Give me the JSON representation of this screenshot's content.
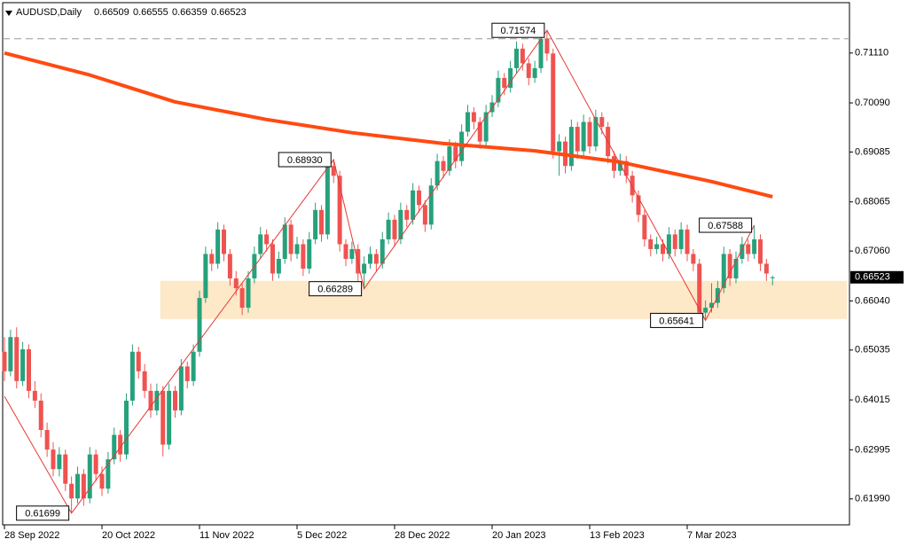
{
  "chart_data": {
    "type": "candlestick",
    "symbol": "AUDUSD,Daily",
    "ylim": [
      0.6146,
      0.7214
    ],
    "yticks": [
      {
        "value": 0.7111,
        "label": "0.71110"
      },
      {
        "value": 0.7009,
        "label": "0.70090"
      },
      {
        "value": 0.69085,
        "label": "0.69085"
      },
      {
        "value": 0.68065,
        "label": "0.68065"
      },
      {
        "value": 0.6706,
        "label": "0.67060"
      },
      {
        "value": 0.6604,
        "label": "0.66040"
      },
      {
        "value": 0.65035,
        "label": "0.65035"
      },
      {
        "value": 0.64015,
        "label": "0.64015"
      },
      {
        "value": 0.62995,
        "label": "0.62995"
      },
      {
        "value": 0.6199,
        "label": "0.61990"
      }
    ],
    "xticks": [
      {
        "value": 0,
        "label": "28 Sep 2022"
      },
      {
        "value": 16,
        "label": "20 Oct 2022"
      },
      {
        "value": 32,
        "label": "11 Nov 2022"
      },
      {
        "value": 48,
        "label": "5 Dec 2022"
      },
      {
        "value": 64,
        "label": "28 Dec 2022"
      },
      {
        "value": 80,
        "label": "20 Jan 2023"
      },
      {
        "value": 96,
        "label": "13 Feb 2023"
      },
      {
        "value": 112,
        "label": "7 Mar 2023"
      }
    ],
    "up_color": "#26a17b",
    "down_color": "#ef5350",
    "candles": [
      [
        0.65,
        0.653,
        0.644,
        0.646
      ],
      [
        0.646,
        0.6545,
        0.645,
        0.653
      ],
      [
        0.653,
        0.655,
        0.6425,
        0.644
      ],
      [
        0.644,
        0.652,
        0.643,
        0.6505
      ],
      [
        0.6505,
        0.6515,
        0.6405,
        0.642
      ],
      [
        0.642,
        0.644,
        0.6385,
        0.64
      ],
      [
        0.64,
        0.6415,
        0.6325,
        0.634
      ],
      [
        0.634,
        0.6355,
        0.6285,
        0.63
      ],
      [
        0.63,
        0.6315,
        0.6245,
        0.626
      ],
      [
        0.626,
        0.6305,
        0.6245,
        0.629
      ],
      [
        0.629,
        0.63,
        0.6215,
        0.623
      ],
      [
        0.623,
        0.6245,
        0.617,
        0.62
      ],
      [
        0.62,
        0.6265,
        0.619,
        0.625
      ],
      [
        0.625,
        0.626,
        0.6185,
        0.62
      ],
      [
        0.62,
        0.6305,
        0.619,
        0.629
      ],
      [
        0.629,
        0.63,
        0.6235,
        0.625
      ],
      [
        0.625,
        0.6265,
        0.6205,
        0.622
      ],
      [
        0.622,
        0.6295,
        0.621,
        0.628
      ],
      [
        0.628,
        0.6345,
        0.627,
        0.633
      ],
      [
        0.633,
        0.634,
        0.6275,
        0.629
      ],
      [
        0.629,
        0.6415,
        0.628,
        0.64
      ],
      [
        0.64,
        0.6515,
        0.639,
        0.65
      ],
      [
        0.65,
        0.651,
        0.6445,
        0.646
      ],
      [
        0.646,
        0.6475,
        0.6405,
        0.642
      ],
      [
        0.642,
        0.6435,
        0.6365,
        0.638
      ],
      [
        0.638,
        0.6435,
        0.637,
        0.642
      ],
      [
        0.642,
        0.643,
        0.6286,
        0.631
      ],
      [
        0.631,
        0.6435,
        0.63,
        0.642
      ],
      [
        0.642,
        0.643,
        0.6365,
        0.638
      ],
      [
        0.638,
        0.6485,
        0.637,
        0.647
      ],
      [
        0.647,
        0.648,
        0.6425,
        0.644
      ],
      [
        0.644,
        0.6515,
        0.643,
        0.65
      ],
      [
        0.65,
        0.6625,
        0.649,
        0.661
      ],
      [
        0.661,
        0.6715,
        0.66,
        0.67
      ],
      [
        0.67,
        0.671,
        0.6665,
        0.668
      ],
      [
        0.668,
        0.6765,
        0.667,
        0.675
      ],
      [
        0.675,
        0.676,
        0.6685,
        0.67
      ],
      [
        0.67,
        0.671,
        0.6635,
        0.665
      ],
      [
        0.665,
        0.6665,
        0.6615,
        0.663
      ],
      [
        0.663,
        0.664,
        0.6575,
        0.659
      ],
      [
        0.659,
        0.6665,
        0.658,
        0.665
      ],
      [
        0.665,
        0.6715,
        0.664,
        0.67
      ],
      [
        0.67,
        0.6755,
        0.669,
        0.674
      ],
      [
        0.674,
        0.675,
        0.6705,
        0.672
      ],
      [
        0.672,
        0.673,
        0.6645,
        0.666
      ],
      [
        0.666,
        0.6705,
        0.665,
        0.669
      ],
      [
        0.669,
        0.6775,
        0.668,
        0.676
      ],
      [
        0.676,
        0.677,
        0.6685,
        0.67
      ],
      [
        0.67,
        0.6735,
        0.669,
        0.672
      ],
      [
        0.672,
        0.673,
        0.6655,
        0.667
      ],
      [
        0.667,
        0.6745,
        0.666,
        0.673
      ],
      [
        0.673,
        0.6805,
        0.672,
        0.679
      ],
      [
        0.679,
        0.68,
        0.6725,
        0.674
      ],
      [
        0.674,
        0.6885,
        0.673,
        0.688
      ],
      [
        0.688,
        0.6893,
        0.6845,
        0.686
      ],
      [
        0.686,
        0.687,
        0.6705,
        0.672
      ],
      [
        0.672,
        0.673,
        0.6675,
        0.669
      ],
      [
        0.669,
        0.6725,
        0.668,
        0.671
      ],
      [
        0.671,
        0.672,
        0.6645,
        0.666
      ],
      [
        0.666,
        0.6695,
        0.66289,
        0.668
      ],
      [
        0.668,
        0.6715,
        0.667,
        0.67
      ],
      [
        0.67,
        0.671,
        0.6665,
        0.668
      ],
      [
        0.668,
        0.6745,
        0.667,
        0.673
      ],
      [
        0.673,
        0.6785,
        0.672,
        0.677
      ],
      [
        0.677,
        0.678,
        0.6715,
        0.673
      ],
      [
        0.673,
        0.6805,
        0.672,
        0.679
      ],
      [
        0.679,
        0.68,
        0.6755,
        0.677
      ],
      [
        0.677,
        0.6845,
        0.676,
        0.683
      ],
      [
        0.683,
        0.684,
        0.6785,
        0.68
      ],
      [
        0.68,
        0.681,
        0.6745,
        0.676
      ],
      [
        0.676,
        0.6855,
        0.675,
        0.684
      ],
      [
        0.684,
        0.6905,
        0.683,
        0.689
      ],
      [
        0.689,
        0.69,
        0.6855,
        0.687
      ],
      [
        0.687,
        0.6935,
        0.686,
        0.692
      ],
      [
        0.692,
        0.693,
        0.6875,
        0.689
      ],
      [
        0.689,
        0.6965,
        0.688,
        0.695
      ],
      [
        0.695,
        0.7005,
        0.694,
        0.699
      ],
      [
        0.699,
        0.7,
        0.6955,
        0.697
      ],
      [
        0.697,
        0.698,
        0.6915,
        0.693
      ],
      [
        0.693,
        0.7005,
        0.692,
        0.699
      ],
      [
        0.699,
        0.7025,
        0.698,
        0.701
      ],
      [
        0.701,
        0.7075,
        0.7,
        0.706
      ],
      [
        0.706,
        0.707,
        0.7025,
        0.704
      ],
      [
        0.704,
        0.7095,
        0.703,
        0.708
      ],
      [
        0.708,
        0.7135,
        0.707,
        0.712
      ],
      [
        0.712,
        0.713,
        0.7075,
        0.709
      ],
      [
        0.709,
        0.71,
        0.7045,
        0.706
      ],
      [
        0.706,
        0.7095,
        0.705,
        0.708
      ],
      [
        0.708,
        0.715,
        0.707,
        0.714
      ],
      [
        0.714,
        0.71574,
        0.7095,
        0.711
      ],
      [
        0.711,
        0.712,
        0.6895,
        0.691
      ],
      [
        0.691,
        0.6945,
        0.686,
        0.693
      ],
      [
        0.693,
        0.694,
        0.6865,
        0.688
      ],
      [
        0.688,
        0.6975,
        0.687,
        0.696
      ],
      [
        0.696,
        0.697,
        0.6895,
        0.691
      ],
      [
        0.691,
        0.6985,
        0.69,
        0.697
      ],
      [
        0.697,
        0.698,
        0.6905,
        0.692
      ],
      [
        0.692,
        0.6995,
        0.691,
        0.698
      ],
      [
        0.698,
        0.699,
        0.6945,
        0.696
      ],
      [
        0.696,
        0.697,
        0.6885,
        0.69
      ],
      [
        0.69,
        0.691,
        0.6855,
        0.687
      ],
      [
        0.687,
        0.6905,
        0.686,
        0.689
      ],
      [
        0.689,
        0.69,
        0.6845,
        0.686
      ],
      [
        0.686,
        0.687,
        0.6805,
        0.682
      ],
      [
        0.682,
        0.683,
        0.6765,
        0.678
      ],
      [
        0.678,
        0.679,
        0.6715,
        0.673
      ],
      [
        0.673,
        0.674,
        0.6695,
        0.671
      ],
      [
        0.671,
        0.6735,
        0.67,
        0.672
      ],
      [
        0.672,
        0.673,
        0.6685,
        0.67
      ],
      [
        0.67,
        0.6755,
        0.669,
        0.674
      ],
      [
        0.674,
        0.675,
        0.6695,
        0.671
      ],
      [
        0.671,
        0.6765,
        0.67,
        0.675
      ],
      [
        0.675,
        0.676,
        0.6685,
        0.67
      ],
      [
        0.67,
        0.671,
        0.6665,
        0.668
      ],
      [
        0.668,
        0.669,
        0.657,
        0.658
      ],
      [
        0.658,
        0.6605,
        0.65641,
        0.659
      ],
      [
        0.659,
        0.664,
        0.658,
        0.66
      ],
      [
        0.66,
        0.6645,
        0.659,
        0.663
      ],
      [
        0.663,
        0.6715,
        0.662,
        0.67
      ],
      [
        0.67,
        0.671,
        0.6635,
        0.665
      ],
      [
        0.665,
        0.6705,
        0.664,
        0.669
      ],
      [
        0.669,
        0.6735,
        0.668,
        0.672
      ],
      [
        0.672,
        0.673,
        0.6685,
        0.67
      ],
      [
        0.67,
        0.67588,
        0.669,
        0.673
      ],
      [
        0.673,
        0.674,
        0.6665,
        0.668
      ],
      [
        0.668,
        0.669,
        0.6645,
        0.666
      ],
      [
        0.66509,
        0.66555,
        0.66359,
        0.66523
      ]
    ],
    "moving_average": {
      "color": "#ff4a12",
      "x": [
        0,
        14,
        28,
        43,
        57,
        72,
        87,
        101,
        116,
        126
      ],
      "values": [
        0.7111,
        0.7066,
        0.7011,
        0.6975,
        0.6948,
        0.6926,
        0.6911,
        0.6888,
        0.6848,
        0.6817
      ]
    },
    "zigzag": {
      "color": "#e53935",
      "x": [
        0,
        11,
        54,
        59,
        89,
        115,
        123
      ],
      "values": [
        0.6409,
        0.61699,
        0.6893,
        0.66289,
        0.71574,
        0.65641,
        0.67588
      ],
      "value_labels": [
        null,
        "0.61699",
        "0.68930",
        "0.66289",
        "0.71574",
        "0.65641",
        "0.67588"
      ]
    },
    "zone": {
      "color": "#fde8c8",
      "top": 0.6645,
      "bottom": 0.6567,
      "start": 26
    },
    "level_line": {
      "color": "#999999",
      "value": 0.714
    }
  }
}
